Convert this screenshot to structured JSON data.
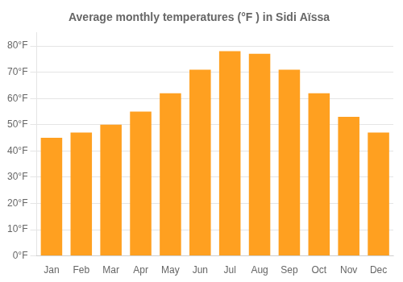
{
  "chart_data": {
    "type": "bar",
    "title": "Average monthly temperatures (°F ) in Sidi Aïssa",
    "categories": [
      "Jan",
      "Feb",
      "Mar",
      "Apr",
      "May",
      "Jun",
      "Jul",
      "Aug",
      "Sep",
      "Oct",
      "Nov",
      "Dec"
    ],
    "values": [
      45,
      47,
      50,
      55,
      62,
      71,
      78,
      77,
      71,
      62,
      53,
      47
    ],
    "color": "#FFA020",
    "ylim": [
      0,
      85
    ],
    "yticks": [
      {
        "value": 0,
        "label": "0°F"
      },
      {
        "value": 10,
        "label": "10°F"
      },
      {
        "value": 20,
        "label": "20°F"
      },
      {
        "value": 30,
        "label": "30°F"
      },
      {
        "value": 40,
        "label": "40°F"
      },
      {
        "value": 50,
        "label": "50°F"
      },
      {
        "value": 60,
        "label": "60°F"
      },
      {
        "value": 70,
        "label": "70°F"
      },
      {
        "value": 80,
        "label": "80°F"
      }
    ],
    "grid": "y"
  }
}
